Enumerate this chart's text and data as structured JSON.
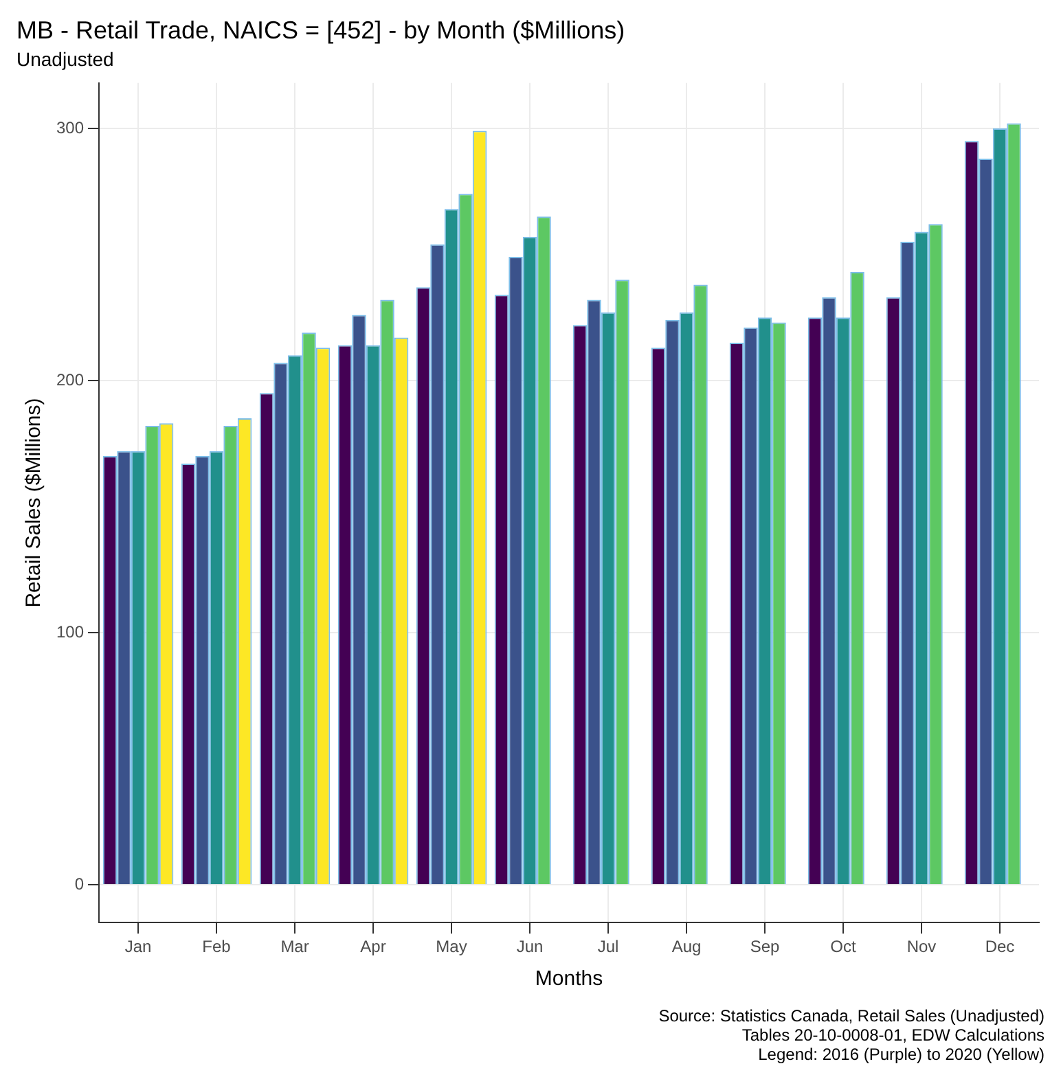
{
  "chart_data": {
    "type": "bar",
    "title": "MB - Retail Trade, NAICS = [452] - by Month ($Millions)",
    "subtitle": "Unadjusted",
    "xlabel": "Months",
    "ylabel": "Retail Sales ($Millions)",
    "categories": [
      "Jan",
      "Feb",
      "Mar",
      "Apr",
      "May",
      "Jun",
      "Jul",
      "Aug",
      "Sep",
      "Oct",
      "Nov",
      "Dec"
    ],
    "series": [
      {
        "color": "#440154",
        "values": [
          170,
          167,
          195,
          214,
          237,
          234,
          222,
          213,
          215,
          225,
          233,
          295
        ]
      },
      {
        "color": "#3b528b",
        "values": [
          172,
          170,
          207,
          226,
          254,
          249,
          232,
          224,
          221,
          233,
          255,
          288
        ]
      },
      {
        "color": "#21908c",
        "values": [
          172,
          172,
          210,
          214,
          268,
          257,
          227,
          227,
          225,
          225,
          259,
          300
        ]
      },
      {
        "color": "#5dc863",
        "values": [
          182,
          182,
          219,
          232,
          274,
          265,
          240,
          238,
          223,
          243,
          262,
          302
        ]
      },
      {
        "color": "#fde725",
        "values": [
          183,
          185,
          213,
          217,
          299,
          null,
          null,
          null,
          null,
          null,
          null,
          null
        ]
      }
    ],
    "ylim": [
      -15,
      318
    ],
    "yticks": [
      0,
      100,
      200,
      300
    ],
    "grid": true,
    "legend": false,
    "annotations": [
      "Source: Statistics Canada, Retail Sales (Unadjusted)",
      "Tables 20-10-0008-01, EDW Calculations",
      "Legend: 2016 (Purple) to 2020 (Yellow)"
    ]
  }
}
